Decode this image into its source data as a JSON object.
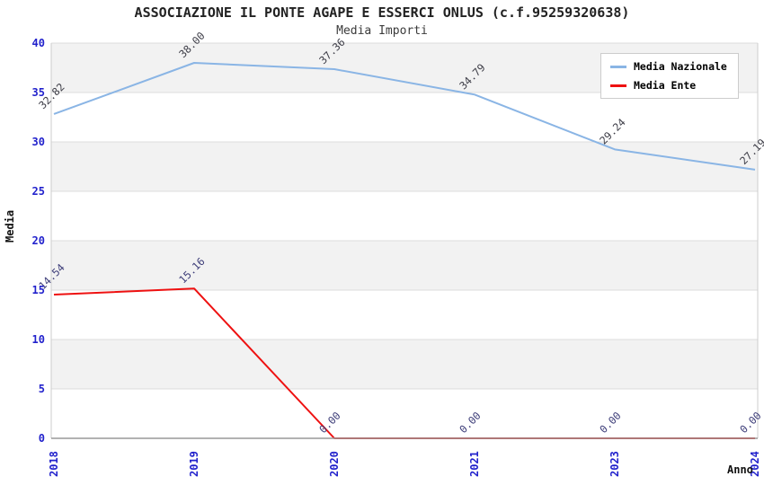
{
  "header": {
    "title": "ASSOCIAZIONE IL PONTE AGAPE E ESSERCI ONLUS (c.f.95259320638)",
    "subtitle": "Media Importi"
  },
  "colors": {
    "background": "#ffffff",
    "band_fill": "#f2f2f2",
    "gridline": "#dcdcdc",
    "axis_line": "#999999",
    "plot_border": "#cccccc",
    "tick_label": "#2222cc",
    "axis_title": "#111111",
    "title_text": "#222222",
    "legend_border": "#cccccc",
    "nazionale_line": "#8ab5e5",
    "ente_line": "#ee1111",
    "nazionale_value_label": "#3c3c46",
    "ente_value_label": "#3c3c78"
  },
  "chart_data": {
    "type": "line",
    "title": "ASSOCIAZIONE IL PONTE AGAPE E ESSERCI ONLUS (c.f.95259320638)",
    "subtitle": "Media Importi",
    "xlabel": "Anno",
    "ylabel": "Media",
    "categories": [
      "2018",
      "2019",
      "2020",
      "2021",
      "2023",
      "2024"
    ],
    "series": [
      {
        "name": "Media Nazionale",
        "color": "#8ab5e5",
        "label_color": "#3c3c46",
        "values": [
          32.82,
          38.0,
          37.36,
          34.79,
          29.24,
          27.19
        ],
        "value_labels": [
          "32.82",
          "38.00",
          "37.36",
          "34.79",
          "29.24",
          "27.19"
        ]
      },
      {
        "name": "Media Ente",
        "color": "#ee1111",
        "label_color": "#3c3c78",
        "values": [
          14.54,
          15.16,
          0.0,
          0.0,
          0.0,
          0.0
        ],
        "value_labels": [
          "14.54",
          "15.16",
          "0.00",
          "0.00",
          "0.00",
          "0.00"
        ]
      }
    ],
    "ylim": [
      0,
      40
    ],
    "ytick_step": 5,
    "yticks": [
      0,
      5,
      10,
      15,
      20,
      25,
      30,
      35,
      40
    ],
    "grid": true,
    "band_shading": "alternating",
    "legend_position": "top-right"
  }
}
